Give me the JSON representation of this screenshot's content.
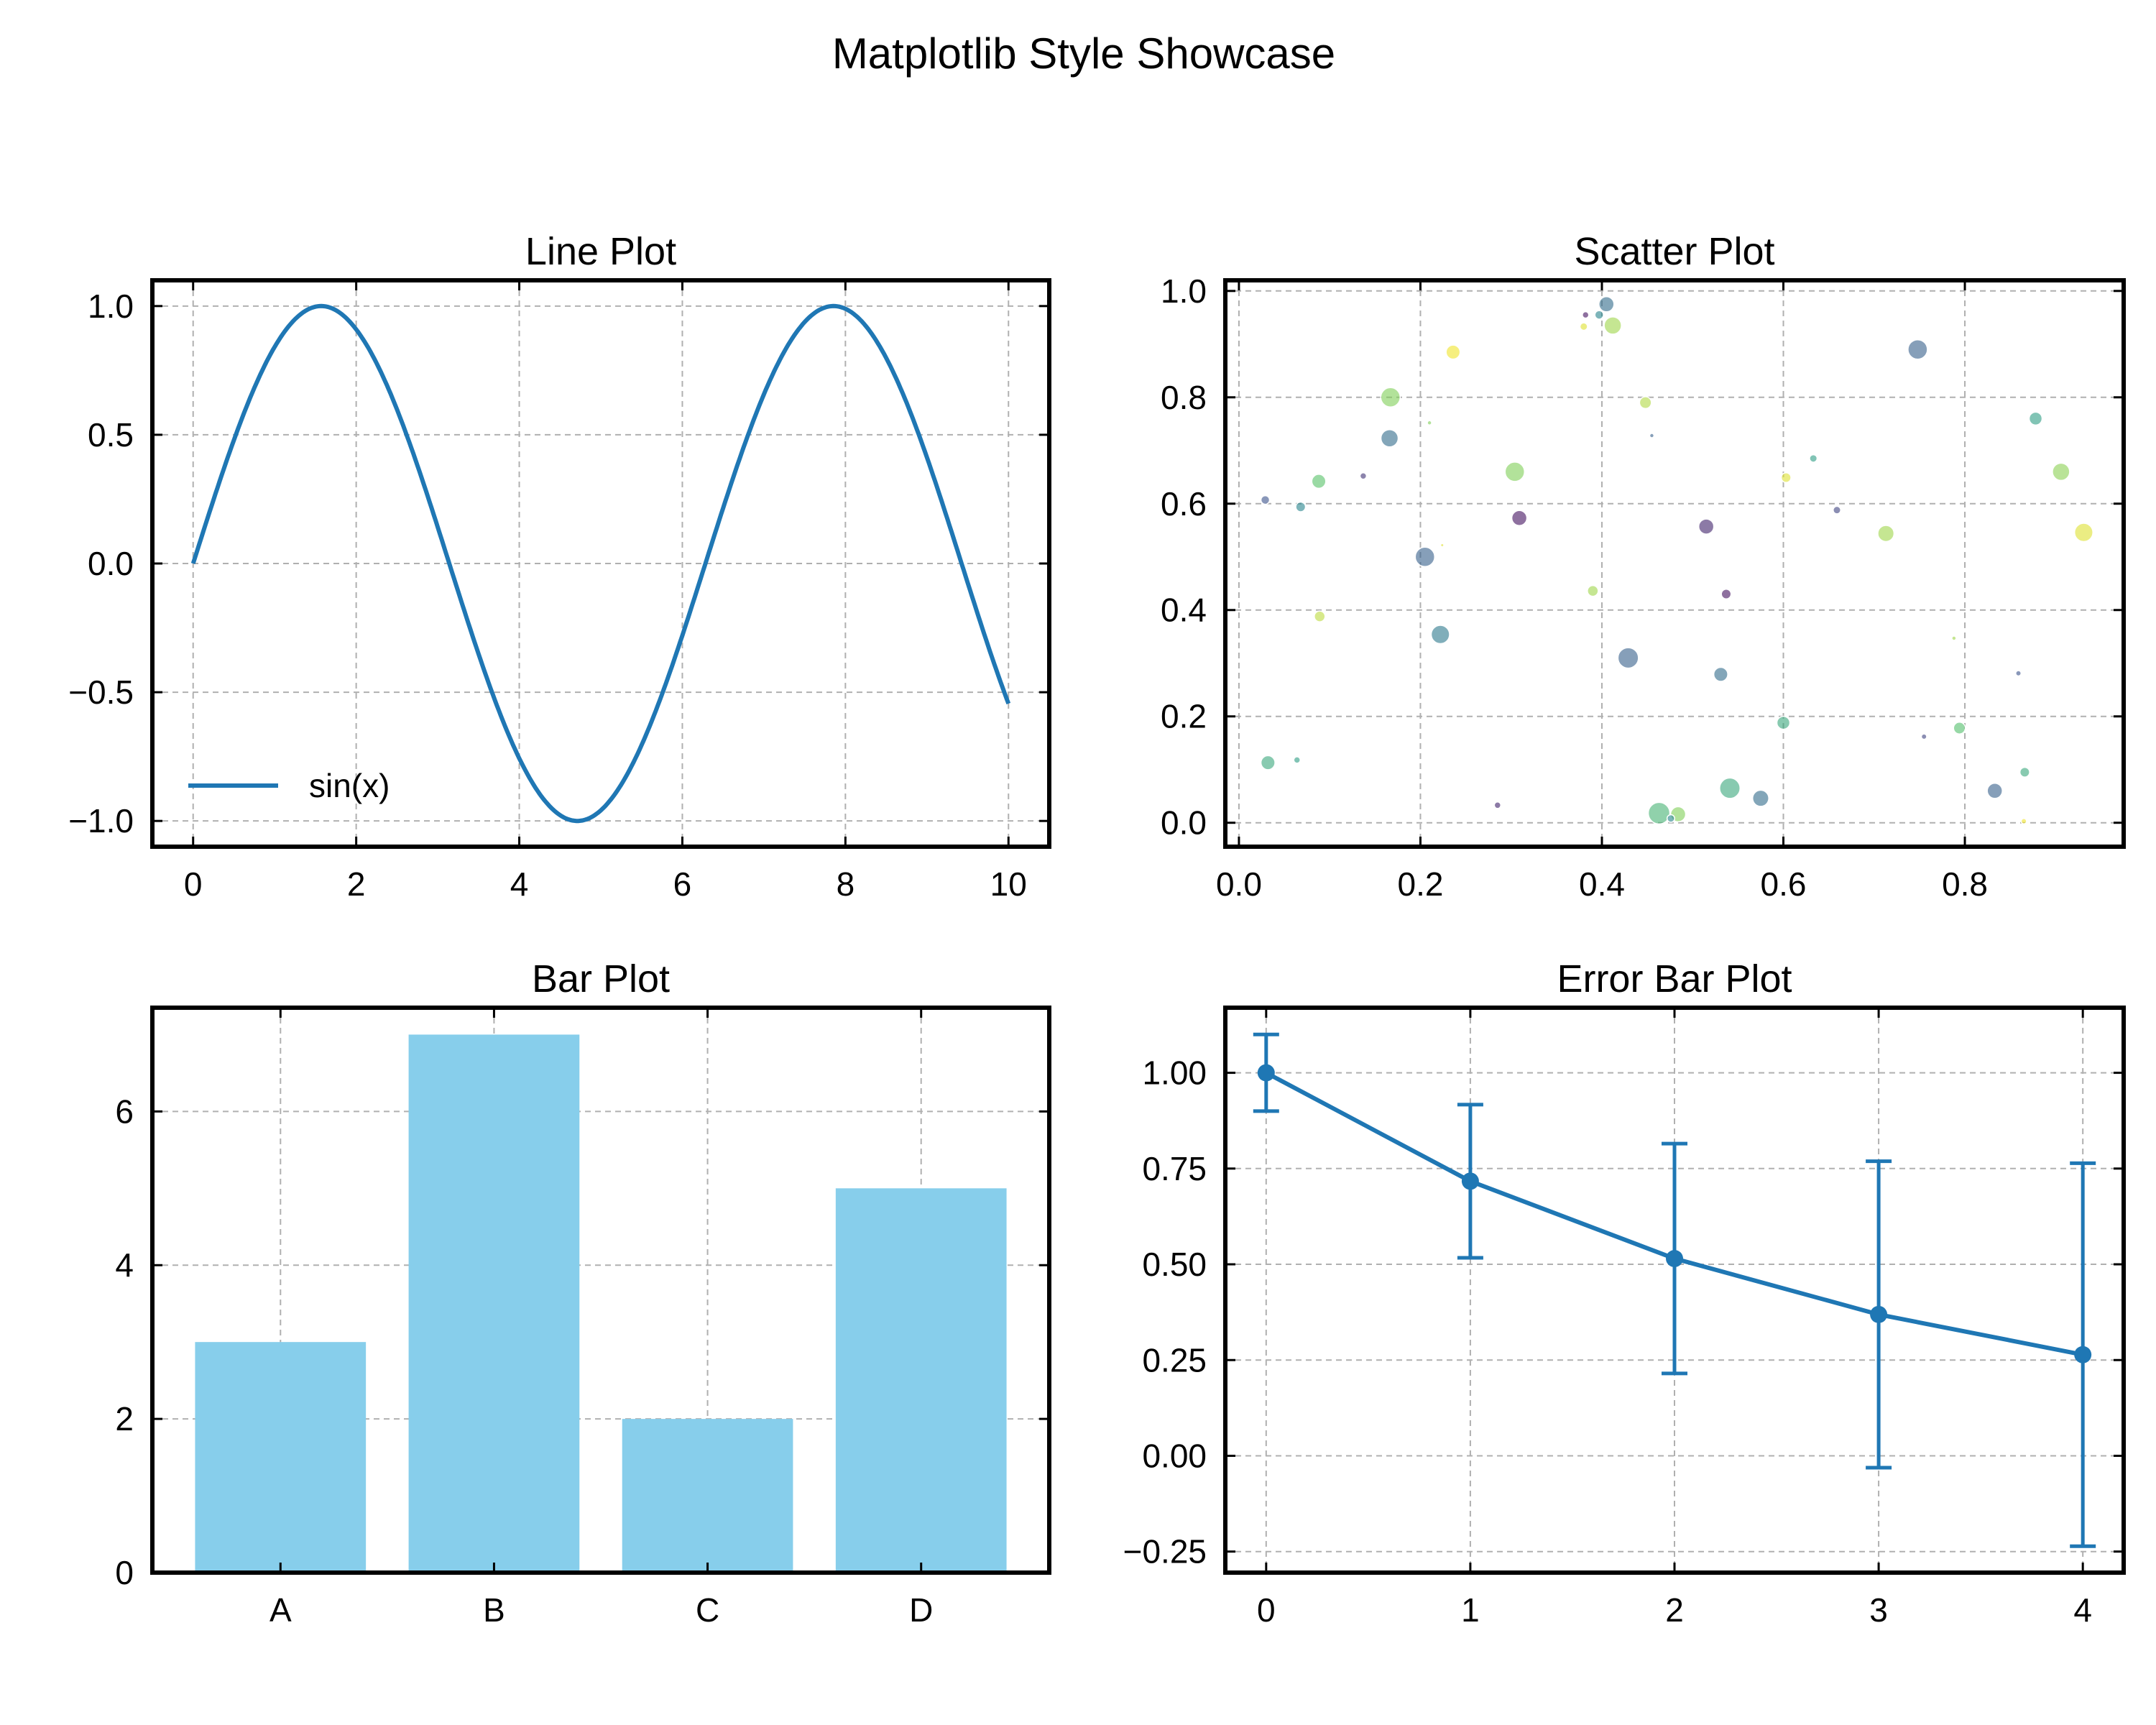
{
  "figure": {
    "suptitle": "Matplotlib Style Showcase"
  },
  "colors": {
    "line": "#1f77b4",
    "bar": "#87ceeb",
    "grid": "#b0b0b0"
  },
  "chart_data": [
    {
      "type": "line",
      "title": "Line Plot",
      "function": "sin(x)",
      "x_range": [
        0,
        10
      ],
      "series": [
        {
          "name": "sin(x)"
        }
      ],
      "legend": "lower-left",
      "xlim": [
        -0.5,
        10.5
      ],
      "ylim": [
        -1.1,
        1.1
      ],
      "xticks": [
        0,
        2,
        4,
        6,
        8,
        10
      ],
      "xtick_labels": [
        "0",
        "2",
        "4",
        "6",
        "8",
        "10"
      ],
      "yticks": [
        -1.0,
        -0.5,
        0.0,
        0.5,
        1.0
      ],
      "ytick_labels": [
        "−1.0",
        "−0.5",
        "0.0",
        "0.5",
        "1.0"
      ],
      "grid": true
    },
    {
      "type": "scatter",
      "title": "Scatter Plot",
      "xlim": [
        -0.015,
        0.975
      ],
      "ylim": [
        -0.045,
        1.02
      ],
      "xticks": [
        0.0,
        0.2,
        0.4,
        0.6,
        0.8
      ],
      "xtick_labels": [
        "0.0",
        "0.2",
        "0.4",
        "0.6",
        "0.8"
      ],
      "yticks": [
        0.0,
        0.2,
        0.4,
        0.6,
        0.8,
        1.0
      ],
      "ytick_labels": [
        "0.0",
        "0.2",
        "0.4",
        "0.6",
        "0.8",
        "1.0"
      ],
      "grid": true,
      "colormap": "viridis",
      "points": [
        {
          "x": 0.405,
          "y": 0.975,
          "s": 14,
          "c": 0.35
        },
        {
          "x": 0.382,
          "y": 0.955,
          "s": 6,
          "c": 0.05
        },
        {
          "x": 0.397,
          "y": 0.955,
          "s": 8,
          "c": 0.45
        },
        {
          "x": 0.412,
          "y": 0.935,
          "s": 16,
          "c": 0.85
        },
        {
          "x": 0.38,
          "y": 0.933,
          "s": 7,
          "c": 0.95
        },
        {
          "x": 0.748,
          "y": 0.89,
          "s": 18,
          "c": 0.3
        },
        {
          "x": 0.236,
          "y": 0.885,
          "s": 13,
          "c": 0.98
        },
        {
          "x": 0.167,
          "y": 0.8,
          "s": 18,
          "c": 0.8
        },
        {
          "x": 0.448,
          "y": 0.79,
          "s": 11,
          "c": 0.88
        },
        {
          "x": 0.21,
          "y": 0.752,
          "s": 4,
          "c": 0.8
        },
        {
          "x": 0.166,
          "y": 0.723,
          "s": 16,
          "c": 0.35
        },
        {
          "x": 0.455,
          "y": 0.728,
          "s": 4,
          "c": 0.3
        },
        {
          "x": 0.878,
          "y": 0.76,
          "s": 12,
          "c": 0.55
        },
        {
          "x": 0.633,
          "y": 0.685,
          "s": 7,
          "c": 0.55
        },
        {
          "x": 0.304,
          "y": 0.66,
          "s": 18,
          "c": 0.8
        },
        {
          "x": 0.603,
          "y": 0.649,
          "s": 9,
          "c": 0.95
        },
        {
          "x": 0.906,
          "y": 0.66,
          "s": 16,
          "c": 0.82
        },
        {
          "x": 0.088,
          "y": 0.642,
          "s": 13,
          "c": 0.72
        },
        {
          "x": 0.137,
          "y": 0.652,
          "s": 6,
          "c": 0.15
        },
        {
          "x": 0.029,
          "y": 0.607,
          "s": 8,
          "c": 0.25
        },
        {
          "x": 0.068,
          "y": 0.594,
          "s": 9,
          "c": 0.45
        },
        {
          "x": 0.659,
          "y": 0.588,
          "s": 7,
          "c": 0.2
        },
        {
          "x": 0.309,
          "y": 0.573,
          "s": 14,
          "c": 0.05
        },
        {
          "x": 0.515,
          "y": 0.557,
          "s": 14,
          "c": 0.1
        },
        {
          "x": 0.713,
          "y": 0.544,
          "s": 15,
          "c": 0.85
        },
        {
          "x": 0.931,
          "y": 0.546,
          "s": 17,
          "c": 0.95
        },
        {
          "x": 0.205,
          "y": 0.5,
          "s": 18,
          "c": 0.3
        },
        {
          "x": 0.224,
          "y": 0.522,
          "s": 3,
          "c": 0.95
        },
        {
          "x": 0.39,
          "y": 0.436,
          "s": 10,
          "c": 0.85
        },
        {
          "x": 0.537,
          "y": 0.43,
          "s": 9,
          "c": 0.05
        },
        {
          "x": 0.089,
          "y": 0.388,
          "s": 10,
          "c": 0.9
        },
        {
          "x": 0.222,
          "y": 0.354,
          "s": 17,
          "c": 0.4
        },
        {
          "x": 0.788,
          "y": 0.347,
          "s": 4,
          "c": 0.85
        },
        {
          "x": 0.429,
          "y": 0.31,
          "s": 19,
          "c": 0.3
        },
        {
          "x": 0.531,
          "y": 0.279,
          "s": 13,
          "c": 0.35
        },
        {
          "x": 0.859,
          "y": 0.281,
          "s": 5,
          "c": 0.25
        },
        {
          "x": 0.6,
          "y": 0.188,
          "s": 12,
          "c": 0.6
        },
        {
          "x": 0.794,
          "y": 0.178,
          "s": 11,
          "c": 0.7
        },
        {
          "x": 0.755,
          "y": 0.162,
          "s": 5,
          "c": 0.2
        },
        {
          "x": 0.032,
          "y": 0.113,
          "s": 13,
          "c": 0.6
        },
        {
          "x": 0.064,
          "y": 0.118,
          "s": 6,
          "c": 0.55
        },
        {
          "x": 0.866,
          "y": 0.095,
          "s": 9,
          "c": 0.6
        },
        {
          "x": 0.541,
          "y": 0.065,
          "s": 19,
          "c": 0.6
        },
        {
          "x": 0.833,
          "y": 0.06,
          "s": 14,
          "c": 0.3
        },
        {
          "x": 0.575,
          "y": 0.046,
          "s": 15,
          "c": 0.35
        },
        {
          "x": 0.285,
          "y": 0.033,
          "s": 6,
          "c": 0.1
        },
        {
          "x": 0.463,
          "y": 0.018,
          "s": 20,
          "c": 0.65
        },
        {
          "x": 0.484,
          "y": 0.016,
          "s": 14,
          "c": 0.8
        },
        {
          "x": 0.476,
          "y": 0.008,
          "s": 7,
          "c": 0.45
        },
        {
          "x": 0.865,
          "y": 0.003,
          "s": 5,
          "c": 0.98
        }
      ]
    },
    {
      "type": "bar",
      "title": "Bar Plot",
      "categories": [
        "A",
        "B",
        "C",
        "D"
      ],
      "values": [
        3,
        7,
        2,
        5
      ],
      "ylim": [
        0,
        7.35
      ],
      "yticks": [
        0,
        2,
        4,
        6
      ],
      "ytick_labels": [
        "0",
        "2",
        "4",
        "6"
      ],
      "grid": true
    },
    {
      "type": "line",
      "title": "Error Bar Plot",
      "x": [
        0,
        1,
        2,
        3,
        4
      ],
      "y": [
        1.0,
        0.717,
        0.515,
        0.369,
        0.264
      ],
      "yerr": [
        0.1,
        0.2,
        0.3,
        0.4,
        0.5
      ],
      "xlim": [
        -0.2,
        4.2
      ],
      "ylim": [
        -0.305,
        1.17
      ],
      "xticks": [
        0,
        1,
        2,
        3,
        4
      ],
      "xtick_labels": [
        "0",
        "1",
        "2",
        "3",
        "4"
      ],
      "yticks": [
        -0.25,
        0.0,
        0.25,
        0.5,
        0.75,
        1.0
      ],
      "ytick_labels": [
        "−0.25",
        "0.00",
        "0.25",
        "0.50",
        "0.75",
        "1.00"
      ],
      "grid": true
    }
  ]
}
